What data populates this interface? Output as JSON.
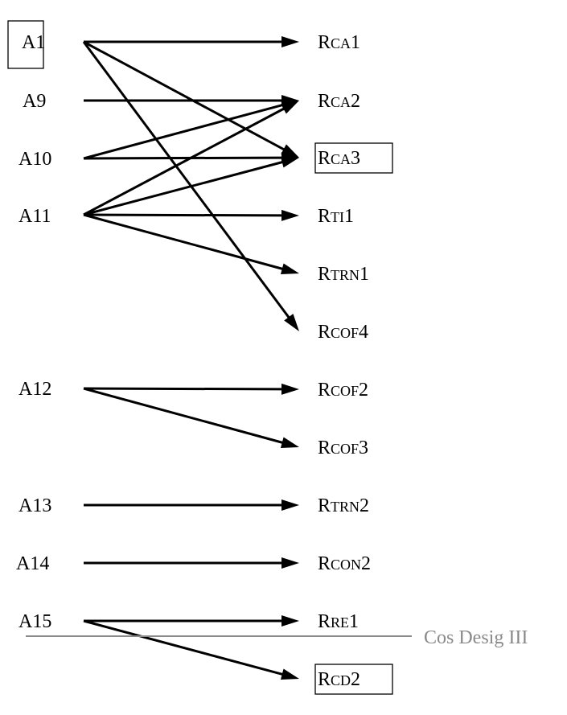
{
  "diagram": {
    "caption": "Cos Desig III",
    "left_nodes": [
      {
        "id": "A1",
        "label": "A1",
        "boxed": true
      },
      {
        "id": "A9",
        "label": "A9",
        "boxed": false
      },
      {
        "id": "A10",
        "label": "A10",
        "boxed": false
      },
      {
        "id": "A11",
        "label": "A11",
        "boxed": false
      },
      {
        "id": "A12",
        "label": "A12",
        "boxed": false
      },
      {
        "id": "A13",
        "label": "A13",
        "boxed": false
      },
      {
        "id": "A14",
        "label": "A14",
        "boxed": false
      },
      {
        "id": "A15",
        "label": "A15",
        "boxed": false
      }
    ],
    "right_nodes": [
      {
        "id": "RCA1",
        "prefix": "R",
        "sc": "CA",
        "suffix": "1",
        "boxed": false
      },
      {
        "id": "RCA2",
        "prefix": "R",
        "sc": "CA",
        "suffix": "2",
        "boxed": false
      },
      {
        "id": "RCA3",
        "prefix": "R",
        "sc": "CA",
        "suffix": "3",
        "boxed": true
      },
      {
        "id": "RTI1",
        "prefix": "R",
        "sc": "TI",
        "suffix": "1",
        "boxed": false
      },
      {
        "id": "RTRN1",
        "prefix": "R",
        "sc": "TRN",
        "suffix": "1",
        "boxed": false
      },
      {
        "id": "RCOF4",
        "prefix": "R",
        "sc": "COF",
        "suffix": "4",
        "boxed": false
      },
      {
        "id": "RCOF2",
        "prefix": "R",
        "sc": "COF",
        "suffix": "2",
        "boxed": false
      },
      {
        "id": "RCOF3",
        "prefix": "R",
        "sc": "COF",
        "suffix": "3",
        "boxed": false
      },
      {
        "id": "RTRN2",
        "prefix": "R",
        "sc": "TRN",
        "suffix": "2",
        "boxed": false
      },
      {
        "id": "RCON2",
        "prefix": "R",
        "sc": "CON",
        "suffix": "2",
        "boxed": false
      },
      {
        "id": "RRE1",
        "prefix": "R",
        "sc": "RE",
        "suffix": "1",
        "boxed": false
      },
      {
        "id": "RCD2",
        "prefix": "R",
        "sc": "CD",
        "suffix": "2",
        "boxed": true
      }
    ],
    "edges": [
      {
        "from": "A1",
        "to": "RCA1"
      },
      {
        "from": "A1",
        "to": "RCA3"
      },
      {
        "from": "A1",
        "to": "RCOF4"
      },
      {
        "from": "A9",
        "to": "RCA2"
      },
      {
        "from": "A10",
        "to": "RCA2"
      },
      {
        "from": "A10",
        "to": "RCA3"
      },
      {
        "from": "A11",
        "to": "RCA2"
      },
      {
        "from": "A11",
        "to": "RCA3"
      },
      {
        "from": "A11",
        "to": "RTI1"
      },
      {
        "from": "A11",
        "to": "RTRN1"
      },
      {
        "from": "A12",
        "to": "RCOF2"
      },
      {
        "from": "A12",
        "to": "RCOF3"
      },
      {
        "from": "A13",
        "to": "RTRN2"
      },
      {
        "from": "A14",
        "to": "RCON2"
      },
      {
        "from": "A15",
        "to": "RRE1"
      },
      {
        "from": "A15",
        "to": "RCD2"
      }
    ]
  }
}
